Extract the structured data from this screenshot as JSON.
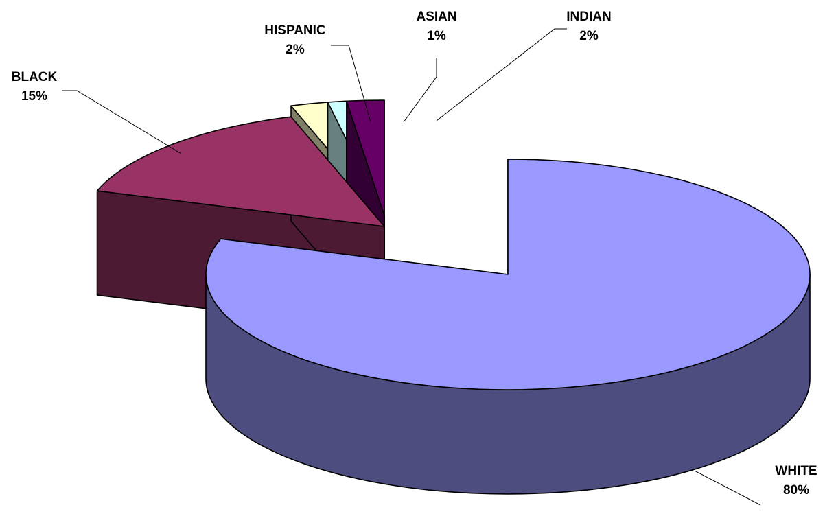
{
  "chart_data": {
    "type": "pie",
    "style": "3d-exploded",
    "title": "",
    "legend": "none",
    "slices": [
      {
        "label": "WHITE",
        "display_label": "WHITE",
        "value": 80,
        "pct_label": "80%",
        "top_color": "#9999ff",
        "side_color": "#4d4d80"
      },
      {
        "label": "BLACK",
        "display_label": "BLACK",
        "value": 15,
        "pct_label": "15%",
        "top_color": "#993366",
        "side_color": "#4d1a33"
      },
      {
        "label": "HISPANIC",
        "display_label": "HISPANIC",
        "value": 2,
        "pct_label": "2%",
        "top_color": "#ffffcc",
        "side_color": "#808066"
      },
      {
        "label": "ASIAN",
        "display_label": "ASIAN",
        "value": 1,
        "pct_label": "1%",
        "top_color": "#ccffff",
        "side_color": "#668080"
      },
      {
        "label": "INDIAN",
        "display_label": "INDIAN",
        "value": 2,
        "pct_label": "2%",
        "top_color": "#660066",
        "side_color": "#330033"
      }
    ]
  }
}
